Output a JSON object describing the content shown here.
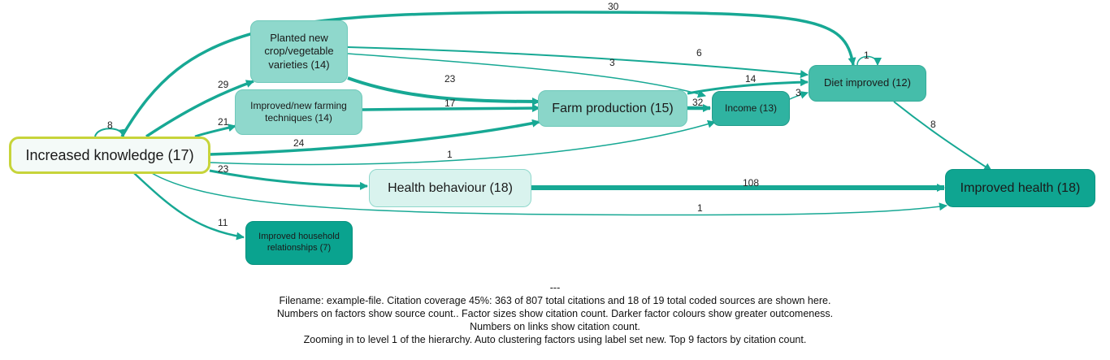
{
  "colors": {
    "edge": "#17a894",
    "focus_border": "#c7d43a"
  },
  "nodes": [
    {
      "id": "knowledge",
      "label": "Increased knowledge (17)",
      "fill": "#f4faf8",
      "border": "#c7d43a"
    },
    {
      "id": "planted",
      "label": "Planted new crop/vegetable varieties (14)",
      "fill": "#8fd8cc",
      "border": "#6fc9ba"
    },
    {
      "id": "techniques",
      "label": "Improved/new farming techniques (14)",
      "fill": "#8fd8cc",
      "border": "#6fc9ba"
    },
    {
      "id": "farm",
      "label": "Farm production (15)",
      "fill": "#8ad6c9",
      "border": "#6fc9ba"
    },
    {
      "id": "income",
      "label": "Income (13)",
      "fill": "#2fb3a1",
      "border": "#229c8b"
    },
    {
      "id": "diet",
      "label": "Diet improved (12)",
      "fill": "#45bdaa",
      "border": "#35ad9a"
    },
    {
      "id": "healthbeh",
      "label": "Health behaviour (18)",
      "fill": "#d9f3ee",
      "border": "#8fd8cc"
    },
    {
      "id": "health",
      "label": "Improved health (18)",
      "fill": "#0fa591",
      "border": "#0b9582"
    },
    {
      "id": "household",
      "label": "Improved household relationships (7)",
      "fill": "#0aa38f",
      "border": "#08927f"
    }
  ],
  "edges": [
    {
      "from": "knowledge",
      "to": "diet",
      "label": "30"
    },
    {
      "from": "diet",
      "to": "diet",
      "label": "1"
    },
    {
      "from": "knowledge",
      "to": "knowledge",
      "label": "8"
    },
    {
      "from": "knowledge",
      "to": "planted",
      "label": "29"
    },
    {
      "from": "knowledge",
      "to": "techniques",
      "label": "21"
    },
    {
      "from": "knowledge",
      "to": "farm",
      "label": "24"
    },
    {
      "from": "knowledge",
      "to": "income",
      "label": "1"
    },
    {
      "from": "knowledge",
      "to": "healthbeh",
      "label": "23"
    },
    {
      "from": "knowledge",
      "to": "health",
      "label": "1"
    },
    {
      "from": "knowledge",
      "to": "household",
      "label": "11"
    },
    {
      "from": "planted",
      "to": "diet",
      "label": "6"
    },
    {
      "from": "planted",
      "to": "income",
      "label": "3"
    },
    {
      "from": "planted",
      "to": "farm",
      "label": "23"
    },
    {
      "from": "techniques",
      "to": "farm",
      "label": "17"
    },
    {
      "from": "farm",
      "to": "diet",
      "label": "14"
    },
    {
      "from": "farm",
      "to": "income",
      "label": "32"
    },
    {
      "from": "income",
      "to": "diet",
      "label": "3"
    },
    {
      "from": "diet",
      "to": "health",
      "label": "8"
    },
    {
      "from": "healthbeh",
      "to": "health",
      "label": "108"
    }
  ],
  "footer": [
    "---",
    "Filename: example-file. Citation coverage 45%: 363 of 807 total citations and 18 of 19 total coded sources are shown here.",
    "Numbers on factors show source count.. Factor sizes show citation count. Darker factor colours show greater outcomeness.",
    "Numbers on links show citation count.",
    "Zooming in to level 1 of the hierarchy. Auto clustering factors using label set new. Top 9 factors by citation count."
  ]
}
